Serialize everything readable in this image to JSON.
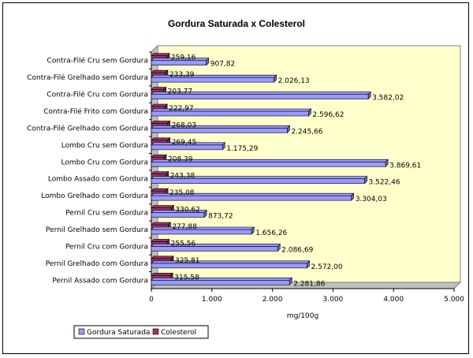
{
  "chart_data": {
    "type": "bar",
    "orientation": "horizontal",
    "title": "Gordura Saturada x Colesterol",
    "xlabel": "mg/100g",
    "ylabel": "",
    "xlim": [
      0,
      5000
    ],
    "x_ticks": [
      0,
      1000,
      2000,
      3000,
      4000,
      5000
    ],
    "x_tick_labels": [
      "0",
      "1.000",
      "2.000",
      "3.000",
      "4.000",
      "5.000"
    ],
    "grid": false,
    "legend_position": "bottom-left",
    "plot_background": "#FFFFCC",
    "categories": [
      "Contra-Filé Cru sem Gordura",
      "Contra-Filé Grelhado sem Gordura",
      "Contra-Filé Cru com Gordura",
      "Contra-Filé Frito com Gordura",
      "Contra-Filé Grelhado com Gordura",
      "Lombo Cru sem Gordura",
      "Lombo Cru com Gordura",
      "Lombo Assado com Gordura",
      "Lombo Grelhado com Gordura",
      "Pernil Cru sem Gordura",
      "Pernil Grelhado sem Gordura",
      "Pernil Cru com Gordura",
      "Pernil Grelhado com Gordura",
      "Pernil Assado com Gordura"
    ],
    "series": [
      {
        "name": "Gordura Saturada",
        "color": "#9999FF",
        "values": [
          907.82,
          2026.13,
          3582.02,
          2596.62,
          2245.66,
          1175.29,
          3869.61,
          3522.46,
          3304.03,
          873.72,
          1656.26,
          2086.69,
          2572.0,
          2281.86
        ],
        "labels": [
          "907,82",
          "2.026,13",
          "3.582,02",
          "2.596,62",
          "2.245,66",
          "1.175,29",
          "3.869,61",
          "3.522,46",
          "3.304,03",
          "873,72",
          "1.656,26",
          "2.086,69",
          "2.572,00",
          "2.281,86"
        ]
      },
      {
        "name": "Colesterol",
        "color": "#993366",
        "values": [
          259.16,
          233.39,
          203.77,
          222.97,
          268.03,
          269.45,
          208.39,
          243.38,
          235.08,
          330.62,
          277.88,
          255.56,
          325.81,
          315.58
        ],
        "labels": [
          "259,16",
          "233,39",
          "203,77",
          "222,97",
          "268,03",
          "269,45",
          "208,39",
          "243,38",
          "235,08",
          "330,62",
          "277,88",
          "255,56",
          "325,81",
          "315,58"
        ]
      }
    ]
  }
}
